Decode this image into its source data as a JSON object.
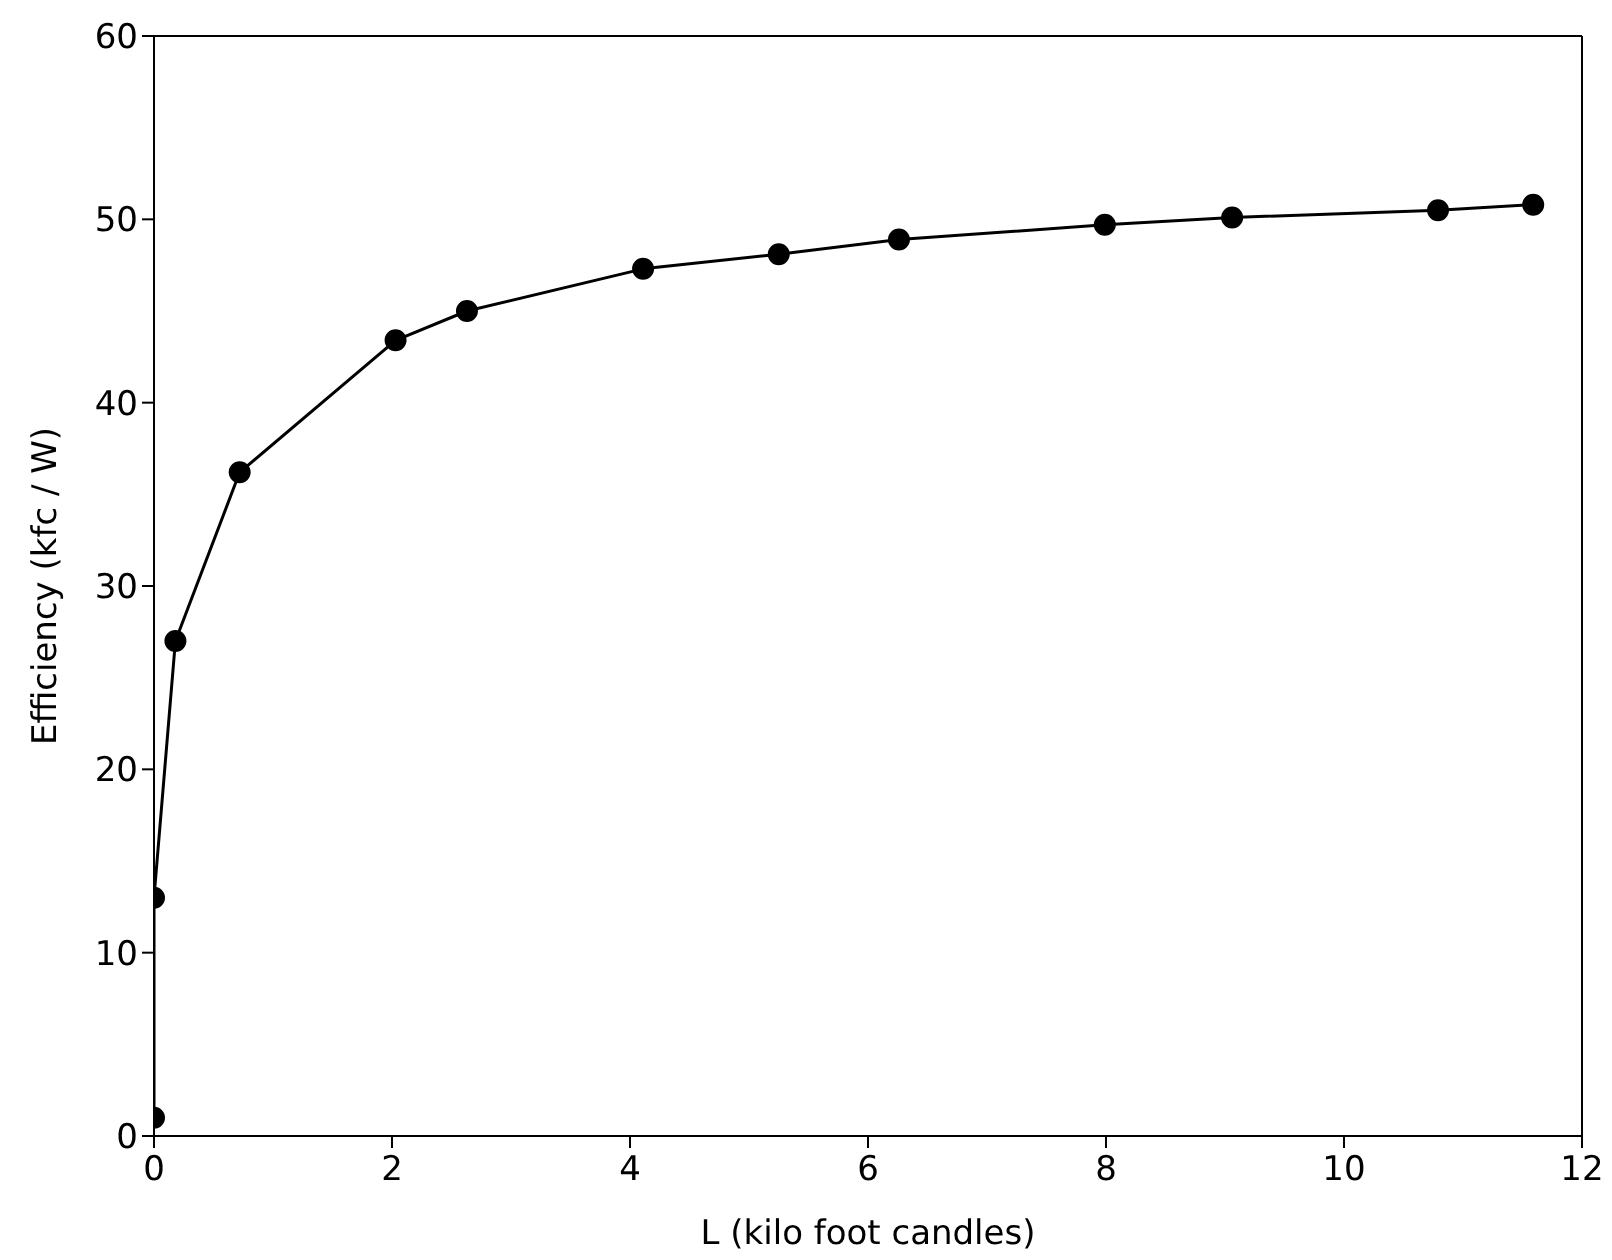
{
  "chart_data": {
    "type": "line",
    "xlabel": "L (kilo foot candles)",
    "ylabel": "Efficiency (kfc / W)",
    "x": [
      0,
      0,
      0.18,
      0.72,
      2.03,
      2.63,
      4.11,
      5.25,
      6.26,
      7.99,
      9.06,
      10.79,
      11.59
    ],
    "series": [
      {
        "color": "#000000",
        "values": [
          1,
          13,
          27,
          36.2,
          43.4,
          45,
          47.3,
          48.1,
          48.9,
          49.7,
          50.1,
          50.5,
          50.8
        ]
      }
    ],
    "xlim": [
      0,
      12
    ],
    "xticks": [
      0,
      2,
      4,
      6,
      8,
      10,
      12
    ],
    "ylim": [
      0,
      60
    ],
    "yticks": [
      0,
      10,
      20,
      30,
      40,
      50,
      60
    ],
    "marker": "circle",
    "line_style": "solid"
  }
}
